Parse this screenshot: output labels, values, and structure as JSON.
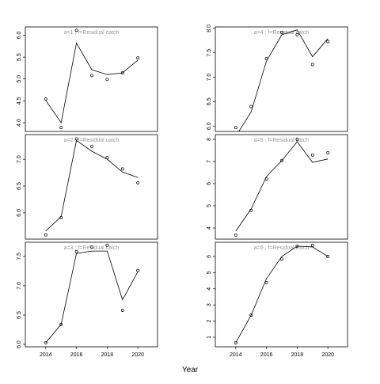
{
  "x_label": "Year",
  "chart_data": [
    {
      "type": "line",
      "title": "a=1 ; f=Residual catch",
      "x": [
        2014,
        2015,
        2016,
        2017,
        2018,
        2019,
        2020
      ],
      "xlim": [
        2012.67,
        2021.28
      ],
      "ylim": [
        3.8,
        6.19
      ],
      "yticks": [
        {
          "value": 4,
          "label": "4.0"
        },
        {
          "value": 4.5,
          "label": "4.5"
        },
        {
          "value": 5,
          "label": "5.0"
        },
        {
          "value": 5.5,
          "label": "5.5"
        },
        {
          "value": 6,
          "label": "6.0"
        }
      ],
      "series": [
        {
          "style": "points",
          "color": "#000000",
          "values": [
            4.54,
            3.89,
            6.11,
            5.08,
            4.99,
            5.14,
            5.48
          ]
        },
        {
          "style": "line",
          "color": "#000000",
          "values": [
            4.51,
            4.0,
            5.82,
            5.21,
            5.1,
            5.14,
            5.43
          ]
        }
      ]
    },
    {
      "type": "line",
      "title": "a=4 ; f=Residual catch",
      "x": [
        2014,
        2015,
        2016,
        2017,
        2018,
        2019,
        2020
      ],
      "xlim": [
        2012.67,
        2021.28
      ],
      "ylim": [
        5.89,
        8.03
      ],
      "yticks": [
        {
          "value": 6,
          "label": "6.0"
        },
        {
          "value": 6.5,
          "label": "6.5"
        },
        {
          "value": 7,
          "label": "7.0"
        },
        {
          "value": 7.5,
          "label": "7.5"
        },
        {
          "value": 8,
          "label": "8.0"
        }
      ],
      "series": [
        {
          "style": "points",
          "color": "#000000",
          "values": [
            5.97,
            6.4,
            7.38,
            7.92,
            7.87,
            7.26,
            7.73
          ]
        },
        {
          "style": "line",
          "color": "#000000",
          "values": [
            5.79,
            6.29,
            7.33,
            7.87,
            7.97,
            7.42,
            7.79
          ]
        }
      ]
    },
    {
      "type": "line",
      "title": "a=2 ; f=Residual catch",
      "x": [
        2014,
        2015,
        2016,
        2017,
        2018,
        2019,
        2020
      ],
      "xlim": [
        2012.67,
        2021.28
      ],
      "ylim": [
        5.51,
        7.46
      ],
      "yticks": [
        {
          "value": 6,
          "label": "6.0"
        },
        {
          "value": 6.5,
          "label": "6.5"
        },
        {
          "value": 7,
          "label": "7.0"
        }
      ],
      "series": [
        {
          "style": "points",
          "color": "#000000",
          "values": [
            5.59,
            5.91,
            7.38,
            7.24,
            7.03,
            6.82,
            6.56
          ]
        },
        {
          "style": "line",
          "color": "#000000",
          "values": [
            5.66,
            5.93,
            7.35,
            7.15,
            7.0,
            6.76,
            6.66
          ]
        }
      ]
    },
    {
      "type": "line",
      "title": "a=5 ; f=Residual catch",
      "x": [
        2014,
        2015,
        2016,
        2017,
        2018,
        2019,
        2020
      ],
      "xlim": [
        2012.67,
        2021.28
      ],
      "ylim": [
        3.5,
        8.21
      ],
      "yticks": [
        4,
        5,
        6,
        7,
        8
      ],
      "series": [
        {
          "style": "points",
          "color": "#000000",
          "values": [
            3.68,
            4.79,
            6.21,
            7.04,
            8.0,
            7.29,
            7.39
          ]
        },
        {
          "style": "line",
          "color": "#000000",
          "values": [
            3.86,
            4.86,
            6.32,
            7.04,
            7.89,
            6.96,
            7.11
          ]
        }
      ]
    },
    {
      "type": "line",
      "title": "a=3 ; f=Residual catch",
      "x": [
        2014,
        2015,
        2016,
        2017,
        2018,
        2019,
        2020
      ],
      "xlim": [
        2012.67,
        2021.28
      ],
      "ylim": [
        5.96,
        7.74
      ],
      "xticks": [
        2014,
        2016,
        2018,
        2020
      ],
      "yticks": [
        {
          "value": 6,
          "label": "6.0"
        },
        {
          "value": 6.5,
          "label": "6.5"
        },
        {
          "value": 7,
          "label": "7.0"
        },
        {
          "value": 7.5,
          "label": "7.5"
        }
      ],
      "series": [
        {
          "style": "points",
          "color": "#000000",
          "values": [
            6.03,
            6.34,
            7.58,
            7.66,
            7.69,
            6.58,
            7.26
          ]
        },
        {
          "style": "line",
          "color": "#000000",
          "values": [
            6.03,
            6.34,
            7.55,
            7.59,
            7.59,
            6.76,
            7.24
          ]
        }
      ]
    },
    {
      "type": "line",
      "title": "a=6 ; f=Residual catch",
      "x": [
        2014,
        2015,
        2016,
        2017,
        2018,
        2019,
        2020
      ],
      "xlim": [
        2012.67,
        2021.28
      ],
      "ylim": [
        0.41,
        6.88
      ],
      "xticks": [
        2014,
        2016,
        2018,
        2020
      ],
      "yticks": [
        1,
        2,
        3,
        4,
        5,
        6
      ],
      "series": [
        {
          "style": "points",
          "color": "#000000",
          "values": [
            0.66,
            2.37,
            4.38,
            5.85,
            6.64,
            6.69,
            6.0
          ]
        },
        {
          "style": "line",
          "color": "#000000",
          "values": [
            0.66,
            2.37,
            4.63,
            6.0,
            6.64,
            6.59,
            6.0
          ]
        }
      ]
    }
  ]
}
